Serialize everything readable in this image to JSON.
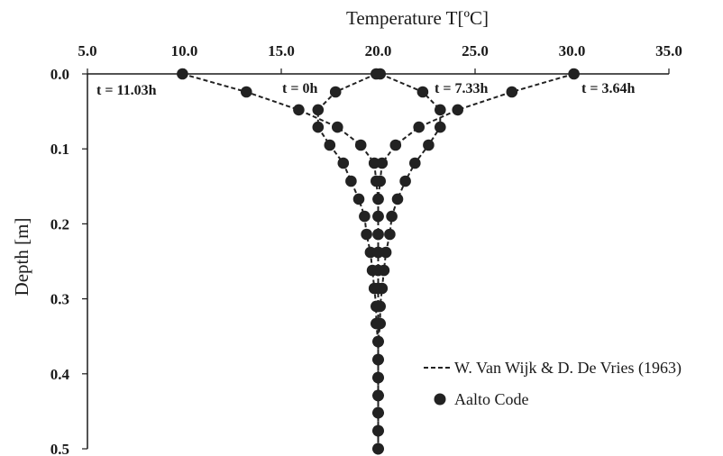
{
  "chart_data": {
    "type": "scatter",
    "title": "",
    "xlabel": "Temperature  T[ºC]",
    "ylabel": "Depth [m]",
    "x_axis_position": "top",
    "y_axis_inverted": true,
    "xlim": [
      5.0,
      35.0
    ],
    "ylim": [
      0.0,
      0.5
    ],
    "x_ticks": [
      "5.0",
      "10.0",
      "15.0",
      "20.0",
      "25.0",
      "30.0",
      "35.0"
    ],
    "y_ticks": [
      "0.0",
      "0.1",
      "0.2",
      "0.3",
      "0.4",
      "0.5"
    ],
    "grid": false,
    "legend_position": "bottom-right",
    "legend": {
      "line_label": "W. Van Wijk & D. De Vries (1963)",
      "marker_label": "Aalto Code"
    },
    "colors": {
      "series": "#222222",
      "axis": "#1a1a1a"
    },
    "curves": [
      {
        "label": "t = 0h",
        "points": [
          [
            19.9,
            0.0
          ],
          [
            17.8,
            0.024
          ],
          [
            16.9,
            0.048
          ],
          [
            16.9,
            0.071
          ],
          [
            17.5,
            0.095
          ],
          [
            18.2,
            0.119
          ],
          [
            18.6,
            0.143
          ],
          [
            19.0,
            0.167
          ],
          [
            19.3,
            0.19
          ],
          [
            19.4,
            0.214
          ],
          [
            19.6,
            0.238
          ],
          [
            19.7,
            0.262
          ],
          [
            19.8,
            0.286
          ],
          [
            19.9,
            0.31
          ],
          [
            19.9,
            0.333
          ],
          [
            20.0,
            0.357
          ],
          [
            20.0,
            0.381
          ],
          [
            20.0,
            0.405
          ],
          [
            20.0,
            0.429
          ],
          [
            20.0,
            0.452
          ],
          [
            20.0,
            0.476
          ],
          [
            20.0,
            0.5
          ]
        ]
      },
      {
        "label": "t = 3.64h",
        "points": [
          [
            30.1,
            0.0
          ],
          [
            26.9,
            0.024
          ],
          [
            24.1,
            0.048
          ],
          [
            22.1,
            0.071
          ],
          [
            20.9,
            0.095
          ],
          [
            20.2,
            0.119
          ],
          [
            20.1,
            0.143
          ],
          [
            20.0,
            0.167
          ],
          [
            20.0,
            0.19
          ],
          [
            20.0,
            0.214
          ],
          [
            20.0,
            0.238
          ],
          [
            20.0,
            0.262
          ],
          [
            20.0,
            0.286
          ],
          [
            20.0,
            0.31
          ],
          [
            20.0,
            0.333
          ],
          [
            20.0,
            0.357
          ],
          [
            20.0,
            0.381
          ],
          [
            20.0,
            0.405
          ],
          [
            20.0,
            0.429
          ],
          [
            20.0,
            0.452
          ],
          [
            20.0,
            0.476
          ],
          [
            20.0,
            0.5
          ]
        ]
      },
      {
        "label": "t = 7.33h",
        "points": [
          [
            20.1,
            0.0
          ],
          [
            22.3,
            0.024
          ],
          [
            23.2,
            0.048
          ],
          [
            23.2,
            0.071
          ],
          [
            22.6,
            0.095
          ],
          [
            21.9,
            0.119
          ],
          [
            21.4,
            0.143
          ],
          [
            21.0,
            0.167
          ],
          [
            20.7,
            0.19
          ],
          [
            20.6,
            0.214
          ],
          [
            20.4,
            0.238
          ],
          [
            20.3,
            0.262
          ],
          [
            20.2,
            0.286
          ],
          [
            20.1,
            0.31
          ],
          [
            20.1,
            0.333
          ],
          [
            20.0,
            0.357
          ],
          [
            20.0,
            0.381
          ],
          [
            20.0,
            0.405
          ],
          [
            20.0,
            0.429
          ],
          [
            20.0,
            0.452
          ],
          [
            20.0,
            0.476
          ],
          [
            20.0,
            0.5
          ]
        ]
      },
      {
        "label": "t = 11.03h",
        "points": [
          [
            9.9,
            0.0
          ],
          [
            13.2,
            0.024
          ],
          [
            15.9,
            0.048
          ],
          [
            17.9,
            0.071
          ],
          [
            19.1,
            0.095
          ],
          [
            19.8,
            0.119
          ],
          [
            19.9,
            0.143
          ],
          [
            20.0,
            0.167
          ],
          [
            20.0,
            0.19
          ],
          [
            20.0,
            0.214
          ],
          [
            20.0,
            0.238
          ],
          [
            20.0,
            0.262
          ],
          [
            20.0,
            0.286
          ],
          [
            20.0,
            0.31
          ],
          [
            20.0,
            0.333
          ],
          [
            20.0,
            0.357
          ],
          [
            20.0,
            0.381
          ],
          [
            20.0,
            0.405
          ],
          [
            20.0,
            0.429
          ],
          [
            20.0,
            0.452
          ],
          [
            20.0,
            0.476
          ],
          [
            20.0,
            0.5
          ]
        ]
      }
    ]
  }
}
